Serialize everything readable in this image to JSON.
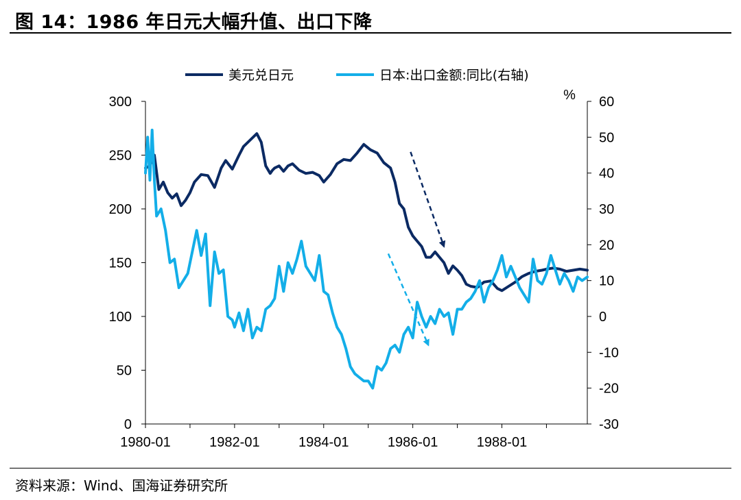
{
  "title": "图 14：1986 年日元大幅升值、出口下降",
  "source": "资料来源：Wind、国海证券研究所",
  "colors": {
    "usd_jpy": "#0b2a63",
    "exports": "#13aee8"
  },
  "chart_data": {
    "type": "line",
    "xlabel": "",
    "ylabel_left": "",
    "ylabel_right": "%",
    "x_tick_labels": [
      "1980-01",
      "1982-01",
      "1984-01",
      "1986-01",
      "1988-01"
    ],
    "x_range": [
      1980.0,
      1989.917
    ],
    "left_axis": {
      "ylim": [
        0,
        300
      ],
      "ticks": [
        0,
        50,
        100,
        150,
        200,
        250,
        300
      ]
    },
    "right_axis": {
      "ylim": [
        -30,
        60
      ],
      "ticks": [
        -30,
        -20,
        -10,
        0,
        10,
        20,
        30,
        40,
        50,
        60
      ]
    },
    "grid": false,
    "legend": {
      "position": "top",
      "entries": [
        "美元兑日元",
        "日本:出口金额:同比(右轴)"
      ]
    },
    "series": [
      {
        "name": "美元兑日元",
        "axis": "left",
        "x": [
          1980.0,
          1980.1,
          1980.2,
          1980.3,
          1980.4,
          1980.5,
          1980.6,
          1980.7,
          1980.8,
          1980.9,
          1981.0,
          1981.1,
          1981.25,
          1981.4,
          1981.55,
          1981.7,
          1981.8,
          1981.95,
          1982.1,
          1982.2,
          1982.35,
          1982.5,
          1982.6,
          1982.7,
          1982.8,
          1982.85,
          1982.9,
          1983.0,
          1983.1,
          1983.2,
          1983.3,
          1983.45,
          1983.6,
          1983.75,
          1983.9,
          1984.0,
          1984.15,
          1984.3,
          1984.45,
          1984.6,
          1984.75,
          1984.9,
          1985.05,
          1985.2,
          1985.35,
          1985.5,
          1985.6,
          1985.7,
          1985.8,
          1985.9,
          1986.0,
          1986.1,
          1986.2,
          1986.3,
          1986.4,
          1986.5,
          1986.6,
          1986.7,
          1986.8,
          1986.9,
          1987.0,
          1987.1,
          1987.2,
          1987.3,
          1987.45,
          1987.6,
          1987.75,
          1987.9,
          1988.0,
          1988.15,
          1988.3,
          1988.45,
          1988.6,
          1988.75,
          1988.9,
          1989.0,
          1989.15,
          1989.3,
          1989.45,
          1989.6,
          1989.75,
          1989.917
        ],
        "values": [
          238,
          240,
          250,
          218,
          225,
          215,
          210,
          214,
          203,
          208,
          215,
          225,
          232,
          231,
          220,
          238,
          245,
          237,
          250,
          258,
          264,
          270,
          262,
          240,
          233,
          236,
          238,
          240,
          235,
          240,
          242,
          236,
          233,
          234,
          231,
          225,
          232,
          242,
          246,
          245,
          252,
          260,
          255,
          252,
          243,
          238,
          225,
          205,
          200,
          183,
          175,
          170,
          165,
          155,
          155,
          160,
          155,
          150,
          140,
          147,
          143,
          138,
          130,
          128,
          127,
          132,
          133,
          126,
          124,
          128,
          132,
          137,
          140,
          142,
          143,
          144,
          145,
          144,
          142,
          143,
          144,
          143
        ]
      },
      {
        "name": "日本:出口金额:同比(右轴)",
        "axis": "right",
        "x": [
          1980.0,
          1980.05,
          1980.1,
          1980.15,
          1980.2,
          1980.25,
          1980.35,
          1980.45,
          1980.55,
          1980.65,
          1980.75,
          1980.85,
          1980.95,
          1981.05,
          1981.15,
          1981.25,
          1981.35,
          1981.45,
          1981.55,
          1981.65,
          1981.75,
          1981.85,
          1981.95,
          1982.0,
          1982.1,
          1982.2,
          1982.3,
          1982.4,
          1982.5,
          1982.6,
          1982.7,
          1982.8,
          1982.9,
          1983.0,
          1983.1,
          1983.2,
          1983.3,
          1983.4,
          1983.5,
          1983.6,
          1983.7,
          1983.8,
          1983.9,
          1984.0,
          1984.1,
          1984.2,
          1984.3,
          1984.4,
          1984.5,
          1984.6,
          1984.7,
          1984.8,
          1984.9,
          1985.0,
          1985.1,
          1985.2,
          1985.3,
          1985.4,
          1985.5,
          1985.6,
          1985.7,
          1985.8,
          1985.9,
          1986.0,
          1986.1,
          1986.2,
          1986.3,
          1986.4,
          1986.5,
          1986.6,
          1986.7,
          1986.8,
          1986.9,
          1987.0,
          1987.1,
          1987.2,
          1987.3,
          1987.4,
          1987.5,
          1987.6,
          1987.7,
          1987.8,
          1987.9,
          1988.0,
          1988.1,
          1988.2,
          1988.3,
          1988.4,
          1988.5,
          1988.6,
          1988.7,
          1988.8,
          1988.9,
          1989.0,
          1989.1,
          1989.2,
          1989.3,
          1989.4,
          1989.5,
          1989.6,
          1989.7,
          1989.8,
          1989.917
        ],
        "values": [
          40,
          50,
          38,
          52,
          38,
          28,
          30,
          24,
          15,
          16,
          8,
          10,
          12,
          18,
          24,
          17,
          23,
          3,
          18,
          12,
          13,
          0,
          -1,
          -3,
          1,
          -4,
          2,
          -6,
          -3,
          -4,
          2,
          3,
          5,
          14,
          7,
          15,
          12,
          16,
          21,
          14,
          12,
          10,
          17,
          7,
          6,
          1,
          -3,
          -5,
          -9,
          -14,
          -16,
          -17,
          -18,
          -18,
          -20,
          -14,
          -15,
          -13,
          -9,
          -8,
          -10,
          -5,
          -3,
          -6,
          4,
          0,
          -3,
          0,
          -2,
          2,
          0,
          1,
          -5,
          2,
          2,
          4,
          5,
          7,
          10,
          4,
          8,
          10,
          13,
          17,
          11,
          14,
          11,
          8,
          6,
          4,
          16,
          10,
          9,
          12,
          17,
          13,
          9,
          12,
          10,
          7,
          11,
          10,
          11
        ]
      }
    ],
    "annotations": [
      {
        "type": "arrow",
        "series": "美元兑日元",
        "style": "dashed",
        "from": {
          "x": 1985.95,
          "y": 253
        },
        "to": {
          "x": 1986.7,
          "y": 165
        }
      },
      {
        "type": "arrow",
        "series": "日本:出口金额:同比(右轴)",
        "style": "dashed",
        "from": {
          "x": 1985.45,
          "y": 17.5
        },
        "to": {
          "x": 1986.35,
          "y": -8
        }
      }
    ]
  }
}
